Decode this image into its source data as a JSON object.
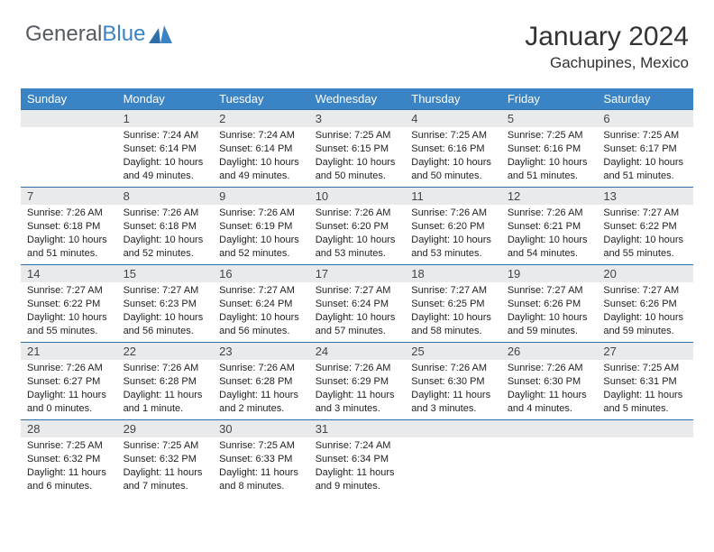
{
  "brand": {
    "part1": "General",
    "part2": "Blue"
  },
  "title": "January 2024",
  "location": "Gachupines, Mexico",
  "colors": {
    "header_bg": "#3a83c4",
    "header_text": "#ffffff",
    "daynum_bg": "#e8eaec",
    "daynum_border": "#2f6ea8",
    "body_text": "#222222",
    "title_text": "#333333",
    "brand_gray": "#555b60",
    "brand_blue": "#3a83c4",
    "page_bg": "#ffffff"
  },
  "weekdays": [
    "Sunday",
    "Monday",
    "Tuesday",
    "Wednesday",
    "Thursday",
    "Friday",
    "Saturday"
  ],
  "weeks": [
    [
      {
        "n": "",
        "sunrise": "",
        "sunset": "",
        "daylight": ""
      },
      {
        "n": "1",
        "sunrise": "Sunrise: 7:24 AM",
        "sunset": "Sunset: 6:14 PM",
        "daylight": "Daylight: 10 hours and 49 minutes."
      },
      {
        "n": "2",
        "sunrise": "Sunrise: 7:24 AM",
        "sunset": "Sunset: 6:14 PM",
        "daylight": "Daylight: 10 hours and 49 minutes."
      },
      {
        "n": "3",
        "sunrise": "Sunrise: 7:25 AM",
        "sunset": "Sunset: 6:15 PM",
        "daylight": "Daylight: 10 hours and 50 minutes."
      },
      {
        "n": "4",
        "sunrise": "Sunrise: 7:25 AM",
        "sunset": "Sunset: 6:16 PM",
        "daylight": "Daylight: 10 hours and 50 minutes."
      },
      {
        "n": "5",
        "sunrise": "Sunrise: 7:25 AM",
        "sunset": "Sunset: 6:16 PM",
        "daylight": "Daylight: 10 hours and 51 minutes."
      },
      {
        "n": "6",
        "sunrise": "Sunrise: 7:25 AM",
        "sunset": "Sunset: 6:17 PM",
        "daylight": "Daylight: 10 hours and 51 minutes."
      }
    ],
    [
      {
        "n": "7",
        "sunrise": "Sunrise: 7:26 AM",
        "sunset": "Sunset: 6:18 PM",
        "daylight": "Daylight: 10 hours and 51 minutes."
      },
      {
        "n": "8",
        "sunrise": "Sunrise: 7:26 AM",
        "sunset": "Sunset: 6:18 PM",
        "daylight": "Daylight: 10 hours and 52 minutes."
      },
      {
        "n": "9",
        "sunrise": "Sunrise: 7:26 AM",
        "sunset": "Sunset: 6:19 PM",
        "daylight": "Daylight: 10 hours and 52 minutes."
      },
      {
        "n": "10",
        "sunrise": "Sunrise: 7:26 AM",
        "sunset": "Sunset: 6:20 PM",
        "daylight": "Daylight: 10 hours and 53 minutes."
      },
      {
        "n": "11",
        "sunrise": "Sunrise: 7:26 AM",
        "sunset": "Sunset: 6:20 PM",
        "daylight": "Daylight: 10 hours and 53 minutes."
      },
      {
        "n": "12",
        "sunrise": "Sunrise: 7:26 AM",
        "sunset": "Sunset: 6:21 PM",
        "daylight": "Daylight: 10 hours and 54 minutes."
      },
      {
        "n": "13",
        "sunrise": "Sunrise: 7:27 AM",
        "sunset": "Sunset: 6:22 PM",
        "daylight": "Daylight: 10 hours and 55 minutes."
      }
    ],
    [
      {
        "n": "14",
        "sunrise": "Sunrise: 7:27 AM",
        "sunset": "Sunset: 6:22 PM",
        "daylight": "Daylight: 10 hours and 55 minutes."
      },
      {
        "n": "15",
        "sunrise": "Sunrise: 7:27 AM",
        "sunset": "Sunset: 6:23 PM",
        "daylight": "Daylight: 10 hours and 56 minutes."
      },
      {
        "n": "16",
        "sunrise": "Sunrise: 7:27 AM",
        "sunset": "Sunset: 6:24 PM",
        "daylight": "Daylight: 10 hours and 56 minutes."
      },
      {
        "n": "17",
        "sunrise": "Sunrise: 7:27 AM",
        "sunset": "Sunset: 6:24 PM",
        "daylight": "Daylight: 10 hours and 57 minutes."
      },
      {
        "n": "18",
        "sunrise": "Sunrise: 7:27 AM",
        "sunset": "Sunset: 6:25 PM",
        "daylight": "Daylight: 10 hours and 58 minutes."
      },
      {
        "n": "19",
        "sunrise": "Sunrise: 7:27 AM",
        "sunset": "Sunset: 6:26 PM",
        "daylight": "Daylight: 10 hours and 59 minutes."
      },
      {
        "n": "20",
        "sunrise": "Sunrise: 7:27 AM",
        "sunset": "Sunset: 6:26 PM",
        "daylight": "Daylight: 10 hours and 59 minutes."
      }
    ],
    [
      {
        "n": "21",
        "sunrise": "Sunrise: 7:26 AM",
        "sunset": "Sunset: 6:27 PM",
        "daylight": "Daylight: 11 hours and 0 minutes."
      },
      {
        "n": "22",
        "sunrise": "Sunrise: 7:26 AM",
        "sunset": "Sunset: 6:28 PM",
        "daylight": "Daylight: 11 hours and 1 minute."
      },
      {
        "n": "23",
        "sunrise": "Sunrise: 7:26 AM",
        "sunset": "Sunset: 6:28 PM",
        "daylight": "Daylight: 11 hours and 2 minutes."
      },
      {
        "n": "24",
        "sunrise": "Sunrise: 7:26 AM",
        "sunset": "Sunset: 6:29 PM",
        "daylight": "Daylight: 11 hours and 3 minutes."
      },
      {
        "n": "25",
        "sunrise": "Sunrise: 7:26 AM",
        "sunset": "Sunset: 6:30 PM",
        "daylight": "Daylight: 11 hours and 3 minutes."
      },
      {
        "n": "26",
        "sunrise": "Sunrise: 7:26 AM",
        "sunset": "Sunset: 6:30 PM",
        "daylight": "Daylight: 11 hours and 4 minutes."
      },
      {
        "n": "27",
        "sunrise": "Sunrise: 7:25 AM",
        "sunset": "Sunset: 6:31 PM",
        "daylight": "Daylight: 11 hours and 5 minutes."
      }
    ],
    [
      {
        "n": "28",
        "sunrise": "Sunrise: 7:25 AM",
        "sunset": "Sunset: 6:32 PM",
        "daylight": "Daylight: 11 hours and 6 minutes."
      },
      {
        "n": "29",
        "sunrise": "Sunrise: 7:25 AM",
        "sunset": "Sunset: 6:32 PM",
        "daylight": "Daylight: 11 hours and 7 minutes."
      },
      {
        "n": "30",
        "sunrise": "Sunrise: 7:25 AM",
        "sunset": "Sunset: 6:33 PM",
        "daylight": "Daylight: 11 hours and 8 minutes."
      },
      {
        "n": "31",
        "sunrise": "Sunrise: 7:24 AM",
        "sunset": "Sunset: 6:34 PM",
        "daylight": "Daylight: 11 hours and 9 minutes."
      },
      {
        "n": "",
        "sunrise": "",
        "sunset": "",
        "daylight": ""
      },
      {
        "n": "",
        "sunrise": "",
        "sunset": "",
        "daylight": ""
      },
      {
        "n": "",
        "sunrise": "",
        "sunset": "",
        "daylight": ""
      }
    ]
  ]
}
